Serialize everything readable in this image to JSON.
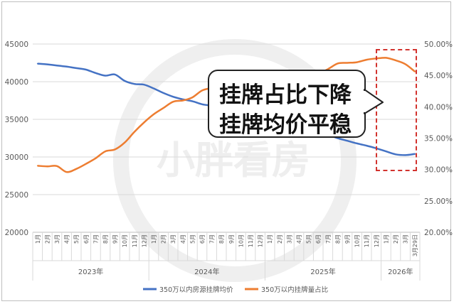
{
  "watermark": "小胖看房",
  "callout": {
    "line1": "挂牌占比下降",
    "line2": "挂牌均价平稳"
  },
  "colors": {
    "price_line": "#4472c4",
    "ratio_line": "#ed7d31",
    "highlight_box": "#d2332e"
  },
  "chart_data": {
    "type": "line",
    "y_left": {
      "ticks": [
        "20000",
        "25000",
        "30000",
        "35000",
        "40000",
        "45000"
      ],
      "ylim": [
        20000,
        45000
      ]
    },
    "y_right": {
      "ticks": [
        "20.00%",
        "25.00%",
        "30.00%",
        "35.00%",
        "40.00%",
        "45.00%",
        "50.00%"
      ],
      "ylim": [
        20,
        50
      ]
    },
    "categories": [
      "1月",
      "2月",
      "3月",
      "4月",
      "5月",
      "6月",
      "7月",
      "8月",
      "9月",
      "10月",
      "11月",
      "12月",
      "1月",
      "2月",
      "3月",
      "4月",
      "5月",
      "6月",
      "7月",
      "8月",
      "9月",
      "10月",
      "11月",
      "12月",
      "1月",
      "2月",
      "3月",
      "4月",
      "5月",
      "6月",
      "7月",
      "8月",
      "9月",
      "10月",
      "11月",
      "12月",
      "1月",
      "2月",
      "3月",
      "3月29日"
    ],
    "year_groups": [
      {
        "label": "2023年",
        "count": 12
      },
      {
        "label": "2024年",
        "count": 12
      },
      {
        "label": "2025年",
        "count": 12
      },
      {
        "label": "2026年",
        "count": 4
      }
    ],
    "series": [
      {
        "name": "350万以内房源挂牌均价",
        "axis": "left",
        "values": [
          42400,
          42300,
          42150,
          42000,
          41800,
          41600,
          41150,
          40800,
          40950,
          40100,
          39700,
          39600,
          39100,
          38500,
          38000,
          37650,
          37400,
          37000,
          36800,
          36500,
          36300,
          36100,
          35900,
          35700,
          35400,
          35100,
          34800,
          34350,
          33800,
          33350,
          32950,
          32500,
          32150,
          31800,
          31500,
          31150,
          30750,
          30350,
          30250,
          30400
        ]
      },
      {
        "name": "350万以内挂牌量占比",
        "axis": "right",
        "values": [
          30.6,
          30.5,
          30.55,
          29.6,
          30.1,
          30.9,
          31.8,
          32.9,
          33.2,
          34.3,
          36.0,
          37.5,
          38.8,
          39.8,
          40.8,
          41.0,
          41.5,
          42.6,
          43.0,
          43.4,
          43.7,
          43.9,
          44.2,
          44.2,
          44.1,
          43.8,
          44.0,
          44.3,
          44.9,
          45.3,
          46.0,
          46.9,
          47.0,
          47.1,
          47.5,
          47.7,
          47.8,
          47.4,
          46.8,
          45.6
        ]
      }
    ]
  }
}
